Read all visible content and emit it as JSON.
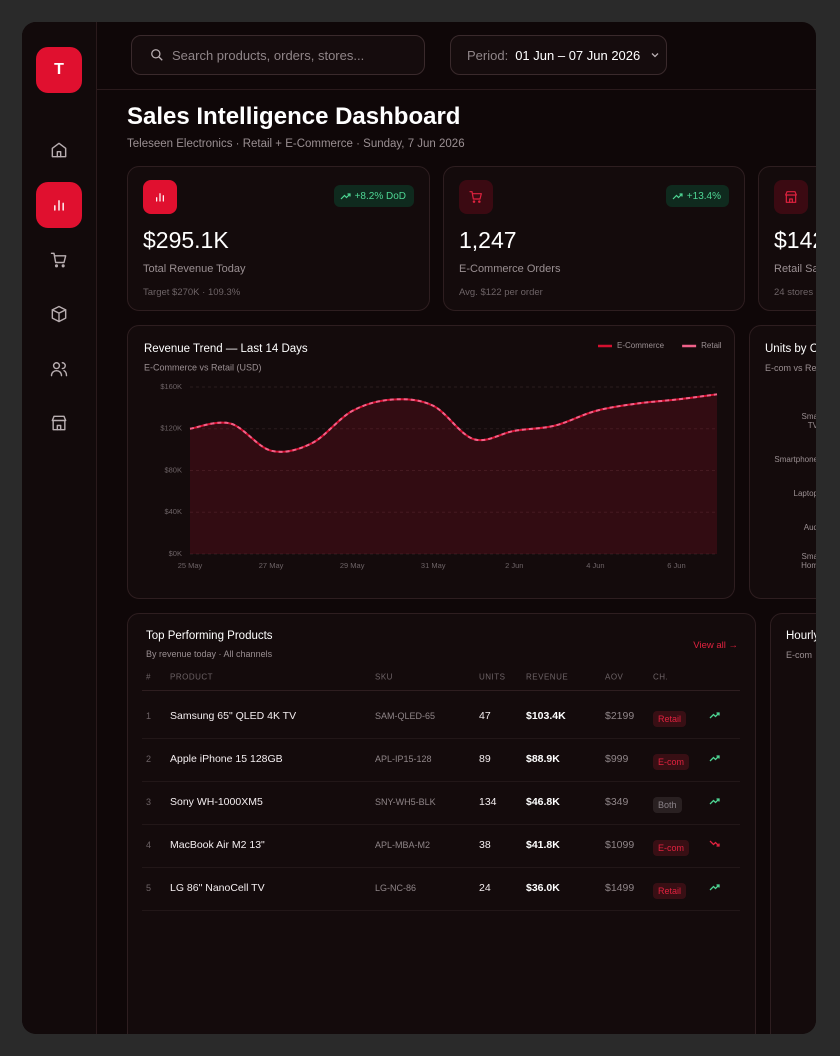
{
  "sidebar": {
    "logo": "T"
  },
  "search": {
    "placeholder": "Search products, orders, stores..."
  },
  "period": {
    "label": "Period:",
    "value": "01 Jun – 07 Jun 2026"
  },
  "header": {
    "title": "Sales Intelligence Dashboard",
    "subtitle": "Teleseen Electronics · Retail + E-Commerce · Sunday, 7 Jun 2026"
  },
  "kpis": [
    {
      "value": "$295.1K",
      "label": "Total Revenue Today",
      "note": "Target $270K · 109.3%",
      "badge": "+8.2% DoD"
    },
    {
      "value": "1,247",
      "label": "E-Commerce Orders",
      "note": "Avg. $122 per order",
      "badge": "+13.4%"
    },
    {
      "value": "$142",
      "label": "Retail Sa",
      "note": "24 stores"
    }
  ],
  "chart_data": {
    "type": "area",
    "title": "Revenue Trend — Last 14 Days",
    "subtitle": "E-Commerce vs Retail (USD)",
    "categories": [
      "25 May",
      null,
      "27 May",
      null,
      "29 May",
      null,
      "31 May",
      null,
      "2 Jun",
      null,
      "4 Jun",
      null,
      "6 Jun",
      null
    ],
    "series": [
      {
        "name": "E-Commerce",
        "color": "#d4102f",
        "dashed": false,
        "values": [
          120,
          125,
          99,
          106,
          137,
          148,
          142,
          110,
          118,
          123,
          137,
          144,
          148,
          153
        ]
      },
      {
        "name": "Retail",
        "color": "#f0628a",
        "dashed": true,
        "values": [
          120,
          125,
          99,
          106,
          137,
          148,
          142,
          110,
          118,
          123,
          137,
          144,
          148,
          153
        ]
      }
    ],
    "ylim": [
      0,
      160
    ],
    "yticks": [
      {
        "value": 0,
        "label": "$0K"
      },
      {
        "value": 40,
        "label": "$40K"
      },
      {
        "value": 80,
        "label": "$80K"
      },
      {
        "value": 120,
        "label": "$120K"
      },
      {
        "value": 160,
        "label": "$160K"
      }
    ],
    "grid": true,
    "legend": "top-right"
  },
  "units_card": {
    "title": "Units by C",
    "subtitle": "E-com vs Re",
    "labels": [
      [
        "Sma",
        "TV"
      ],
      [
        "Smartphone"
      ],
      [
        "Laptop"
      ],
      [
        "Aud"
      ],
      [
        "Sma",
        "Hom"
      ]
    ]
  },
  "products": {
    "title": "Top Performing Products",
    "subtitle": "By revenue today · All channels",
    "link": "View all →",
    "columns": [
      "#",
      "PRODUCT",
      "SKU",
      "UNITS",
      "REVENUE",
      "AOV",
      "CH."
    ],
    "rows": [
      {
        "cells": [
          "1",
          "Samsung 65\" QLED 4K TV",
          "SAM-QLED-65",
          "47",
          "$103.4K",
          "$2199",
          "Retail"
        ],
        "trend": "up",
        "channel_color": "#e0223f"
      },
      {
        "cells": [
          "2",
          "Apple iPhone 15 128GB",
          "APL-IP15-128",
          "89",
          "$88.9K",
          "$999",
          "E-com"
        ],
        "trend": "up",
        "channel_color": "#e0223f"
      },
      {
        "cells": [
          "3",
          "Sony WH-1000XM5",
          "SNY-WH5-BLK",
          "134",
          "$46.8K",
          "$349",
          "Both"
        ],
        "trend": "up",
        "channel_color": "#8a8287"
      },
      {
        "cells": [
          "4",
          "MacBook Air M2 13\"",
          "APL-MBA-M2",
          "38",
          "$41.8K",
          "$1099",
          "E-com"
        ],
        "trend": "down",
        "channel_color": "#e0223f"
      },
      {
        "cells": [
          "5",
          "LG 86\" NanoCell TV",
          "LG-NC-86",
          "24",
          "$36.0K",
          "$1499",
          "Retail"
        ],
        "trend": "up",
        "channel_color": "#e0223f"
      }
    ]
  },
  "hourly": {
    "title": "Hourly",
    "subtitle": "E-com"
  }
}
